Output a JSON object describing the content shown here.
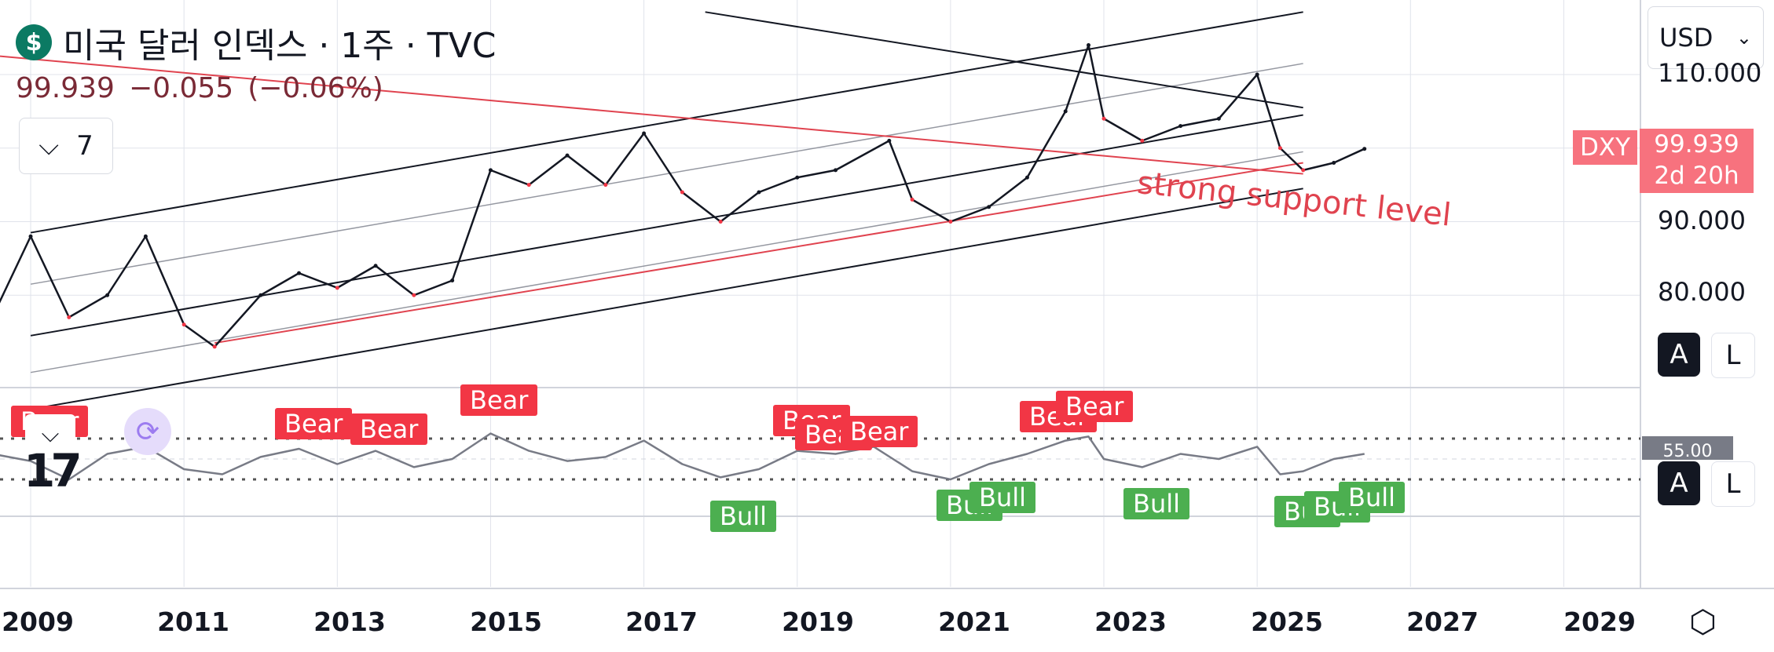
{
  "header": {
    "symbol_icon": "dollar-sign-icon",
    "symbol_glyph": "$",
    "title": "미국 달러 인덱스 · 1주 · TVC",
    "price": "99.939",
    "change": "−0.055",
    "change_pct": "(−0.06%)",
    "collapse_count": "7"
  },
  "currency_select": {
    "value": "USD"
  },
  "price_tag": {
    "symbol": "DXY",
    "price": "99.939",
    "countdown": "2d 20h"
  },
  "annotation": {
    "text": "strong support level"
  },
  "price_axis": {
    "labels": [
      "110.000",
      "90.000",
      "80.000"
    ]
  },
  "indicator": {
    "value_label": "55.00",
    "logo": "17",
    "bear_labels": [
      "Bear",
      "Bear",
      "Bear",
      "Bear",
      "Bear",
      "Bear",
      "Bear",
      "Bear",
      "Bear"
    ],
    "bull_labels": [
      "Bull",
      "Bull",
      "Bull",
      "Bull",
      "Bull",
      "Bull",
      "Bull"
    ]
  },
  "axis_buttons": {
    "auto": "A",
    "log": "L"
  },
  "time_axis": {
    "labels": [
      "2009",
      "2011",
      "2013",
      "2015",
      "2017",
      "2019",
      "2021",
      "2023",
      "2025",
      "2027",
      "2029"
    ]
  },
  "colors": {
    "bear": "#f23645",
    "bull": "#4caf50",
    "price_tag": "#f7727e",
    "trend_red": "#e0434f",
    "brand": "#0b7a63"
  },
  "chart_data": {
    "type": "line",
    "title": "미국 달러 인덱스 · 1주 · TVC",
    "series_name": "DXY",
    "x": [
      2008.5,
      2009.0,
      2009.5,
      2010.0,
      2010.5,
      2011.0,
      2011.4,
      2012.0,
      2012.5,
      2013.0,
      2013.5,
      2014.0,
      2014.5,
      2015.0,
      2015.5,
      2016.0,
      2016.5,
      2017.0,
      2017.5,
      2018.0,
      2018.5,
      2019.0,
      2019.5,
      2020.2,
      2020.5,
      2021.0,
      2021.5,
      2022.0,
      2022.5,
      2022.8,
      2023.0,
      2023.5,
      2024.0,
      2024.5,
      2025.0,
      2025.3,
      2025.6,
      2026.0,
      2026.4
    ],
    "y": [
      77,
      88,
      77,
      80,
      88,
      76,
      73,
      80,
      83,
      81,
      84,
      80,
      82,
      97,
      95,
      99,
      95,
      102,
      94,
      90,
      94,
      96,
      97,
      101,
      93,
      90,
      92,
      96,
      105,
      114,
      104,
      101,
      103,
      104,
      110,
      100,
      97,
      98,
      99.9
    ],
    "ylim": [
      70,
      118
    ],
    "xlim": [
      2008.6,
      2030.0
    ],
    "rsi": {
      "x": [
        2008.5,
        2009.0,
        2009.5,
        2010.0,
        2010.5,
        2011.0,
        2011.5,
        2012.0,
        2012.5,
        2013.0,
        2013.5,
        2014.0,
        2014.5,
        2015.0,
        2015.5,
        2016.0,
        2016.5,
        2017.0,
        2017.5,
        2018.0,
        2018.5,
        2019.0,
        2019.5,
        2020.0,
        2020.5,
        2021.0,
        2021.5,
        2022.0,
        2022.5,
        2022.8,
        2023.0,
        2023.5,
        2024.0,
        2024.5,
        2025.0,
        2025.3,
        2025.6,
        2026.0,
        2026.4
      ],
      "y": [
        55,
        48,
        30,
        55,
        62,
        40,
        35,
        52,
        60,
        45,
        58,
        42,
        50,
        75,
        58,
        48,
        52,
        68,
        45,
        32,
        40,
        58,
        55,
        62,
        38,
        30,
        45,
        55,
        68,
        72,
        50,
        42,
        55,
        50,
        62,
        35,
        38,
        50,
        55
      ],
      "upper": 70,
      "lower": 30
    }
  }
}
